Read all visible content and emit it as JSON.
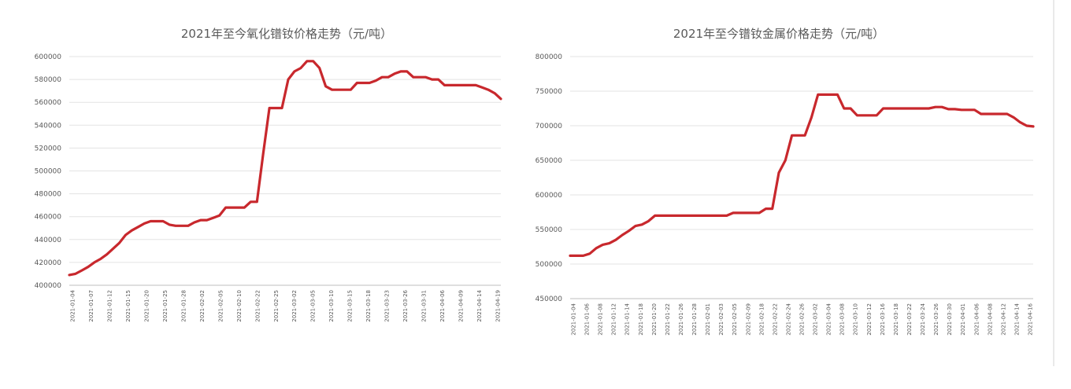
{
  "colors": {
    "series": "#c8282d"
  },
  "chart_data": [
    {
      "type": "line",
      "title": "2021年至今氧化镨钕价格走势（元/吨）",
      "xlabel": "",
      "ylabel": "",
      "ylim": [
        400000,
        600000
      ],
      "yticks": [
        "600000",
        "580000",
        "560000",
        "540000",
        "520000",
        "500000",
        "480000",
        "460000",
        "440000",
        "420000",
        "400000"
      ],
      "x_tick_labels": [
        "2021-01-04",
        "2021-01-07",
        "2021-01-12",
        "2021-01-15",
        "2021-01-20",
        "2021-01-25",
        "2021-01-28",
        "2021-02-02",
        "2021-02-05",
        "2021-02-10",
        "2021-02-22",
        "2021-02-25",
        "2021-03-02",
        "2021-03-05",
        "2021-03-10",
        "2021-03-15",
        "2021-03-18",
        "2021-03-23",
        "2021-03-26",
        "2021-03-31",
        "2021-04-06",
        "2021-04-09",
        "2021-04-14",
        "2021-04-19"
      ],
      "grid": true,
      "series": [
        {
          "values": [
            409000,
            410000,
            413000,
            416000,
            420000,
            423000,
            427000,
            432000,
            437000,
            444000,
            448000,
            451000,
            454000,
            456000,
            456000,
            456000,
            453000,
            452000,
            452000,
            452000,
            455000,
            457000,
            457000,
            459000,
            461000,
            468000,
            468000,
            468000,
            468000,
            473000,
            473000,
            515000,
            555000,
            555000,
            555000,
            580000,
            587000,
            590000,
            596000,
            596000,
            590000,
            574000,
            571000,
            571000,
            571000,
            571000,
            577000,
            577000,
            577000,
            579000,
            582000,
            582000,
            585000,
            587000,
            587000,
            582000,
            582000,
            582000,
            580000,
            580000,
            575000,
            575000,
            575000,
            575000,
            575000,
            575000,
            573000,
            571000,
            568000,
            563000
          ]
        }
      ]
    },
    {
      "type": "line",
      "title": "2021年至今镨钕金属价格走势（元/吨）",
      "xlabel": "",
      "ylabel": "",
      "ylim": [
        450000,
        800000
      ],
      "yticks": [
        "800000",
        "750000",
        "700000",
        "650000",
        "600000",
        "550000",
        "500000",
        "450000"
      ],
      "x_tick_labels": [
        "2021-01-04",
        "2021-01-06",
        "2021-01-08",
        "2021-01-12",
        "2021-01-14",
        "2021-01-18",
        "2021-01-20",
        "2021-01-22",
        "2021-01-26",
        "2021-01-28",
        "2021-02-01",
        "2021-02-03",
        "2021-02-05",
        "2021-02-09",
        "2021-02-18",
        "2021-02-22",
        "2021-02-24",
        "2021-02-26",
        "2021-03-02",
        "2021-03-04",
        "2021-03-08",
        "2021-03-10",
        "2021-03-12",
        "2021-03-16",
        "2021-03-18",
        "2021-03-22",
        "2021-03-24",
        "2021-03-26",
        "2021-03-30",
        "2021-04-01",
        "2021-04-06",
        "2021-04-08",
        "2021-04-12",
        "2021-04-14",
        "2021-04-16"
      ],
      "grid": true,
      "series": [
        {
          "values": [
            512000,
            512000,
            512000,
            515000,
            523000,
            528000,
            530000,
            535000,
            542000,
            548000,
            555000,
            557000,
            562000,
            570000,
            570000,
            570000,
            570000,
            570000,
            570000,
            570000,
            570000,
            570000,
            570000,
            570000,
            570000,
            574000,
            574000,
            574000,
            574000,
            574000,
            580000,
            580000,
            632000,
            650000,
            686000,
            686000,
            686000,
            712000,
            745000,
            745000,
            745000,
            745000,
            725000,
            725000,
            715000,
            715000,
            715000,
            715000,
            725000,
            725000,
            725000,
            725000,
            725000,
            725000,
            725000,
            725000,
            727000,
            727000,
            724000,
            724000,
            723000,
            723000,
            723000,
            717000,
            717000,
            717000,
            717000,
            717000,
            712000,
            705000,
            700000,
            699000
          ]
        }
      ]
    }
  ]
}
